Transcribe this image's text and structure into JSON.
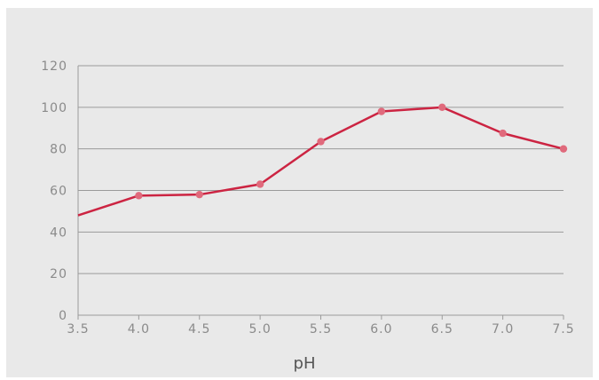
{
  "chart_data": {
    "type": "line",
    "title": "",
    "xlabel": "pH",
    "ylabel": "",
    "x": [
      3.5,
      4.0,
      4.5,
      5.0,
      5.5,
      6.0,
      6.5,
      7.0,
      7.5
    ],
    "x_tick_labels": [
      "3.5",
      "4.0",
      "4.5",
      "5.0",
      "5.5",
      "6.0",
      "6.5",
      "7.0",
      "7.5"
    ],
    "y_ticks": [
      0,
      20,
      40,
      60,
      80,
      100,
      120
    ],
    "y_tick_labels": [
      "0",
      "20",
      "40",
      "60",
      "80",
      "100",
      "120"
    ],
    "ylim": [
      0,
      120
    ],
    "grid": true,
    "legend": "none",
    "series": [
      {
        "values": [
          48,
          57.5,
          58,
          63,
          83.5,
          98,
          100,
          87.5,
          80
        ],
        "markers_shown_from_index": 1
      }
    ]
  },
  "colors": {
    "background": "#e9e9e9",
    "line": "#cc2442",
    "marker": "#e06a7c",
    "grid": "#9a9a9a",
    "tick_text": "#8a8a8a",
    "axis_label": "#555555"
  }
}
